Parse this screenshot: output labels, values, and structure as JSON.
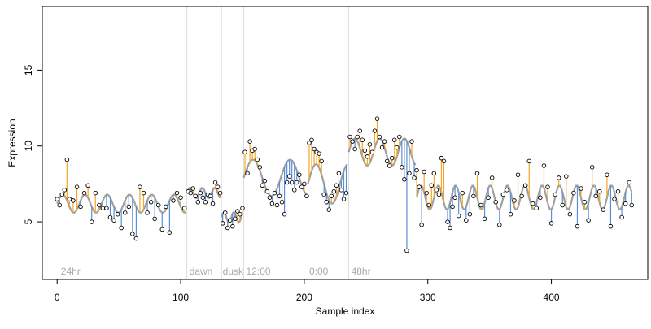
{
  "chart_data": {
    "type": "scatter",
    "title": "",
    "xlabel": "Sample index",
    "ylabel": "Expression",
    "xlim": [
      -12,
      478
    ],
    "ylim": [
      1.2,
      19.2
    ],
    "x_ticks": [
      0,
      100,
      200,
      300,
      400
    ],
    "y_ticks": [
      5,
      10,
      15
    ],
    "grid": false,
    "legend": null,
    "colors": {
      "trend": "#a0a0a0",
      "above": "#f5a623",
      "below": "#5b8fd6",
      "divider": "#dddddd",
      "annotation": "#aaaaaa",
      "point_stroke": "#000000",
      "axis": "#000000"
    },
    "annotations": [
      {
        "label": "24hr",
        "x": 3
      },
      {
        "label": "dawn",
        "x": 107
      },
      {
        "label": "dusk",
        "x": 134
      },
      {
        "label": "12:00",
        "x": 153
      },
      {
        "label": "0:00",
        "x": 204
      },
      {
        "label": "48hr",
        "x": 238
      }
    ],
    "dividers": [
      105,
      133,
      151,
      203,
      236
    ],
    "segments": [
      {
        "x0": 0,
        "x1": 104,
        "base": 6.2,
        "amp": 0.6,
        "period": 18
      },
      {
        "x0": 105,
        "x1": 132,
        "base": 6.9,
        "amp": 0.35,
        "period": 10
      },
      {
        "x0": 133,
        "x1": 150,
        "base": 5.3,
        "amp": 0.35,
        "period": 8
      },
      {
        "x0": 151,
        "x1": 202,
        "base": 7.9,
        "amp": 1.2,
        "period": 30
      },
      {
        "x0": 203,
        "x1": 235,
        "base": 7.5,
        "amp": 1.3,
        "period": 26
      },
      {
        "x0": 236,
        "x1": 290,
        "base": 9.6,
        "amp": 0.9,
        "period": 20
      },
      {
        "x0": 291,
        "x1": 465,
        "base": 6.6,
        "amp": 0.8,
        "period": 14
      }
    ],
    "series": [
      {
        "points": [
          [
            0,
            6.5
          ],
          [
            2,
            6.1
          ],
          [
            4,
            6.8
          ],
          [
            6,
            7.1
          ],
          [
            8,
            9.1
          ],
          [
            10,
            6.5
          ],
          [
            13,
            6.4
          ],
          [
            16,
            7.3
          ],
          [
            19,
            6.0
          ],
          [
            22,
            6.9
          ],
          [
            25,
            7.4
          ],
          [
            28,
            5.0
          ],
          [
            31,
            6.9
          ],
          [
            34,
            6.1
          ],
          [
            37,
            5.9
          ],
          [
            40,
            5.9
          ],
          [
            43,
            5.3
          ],
          [
            46,
            5.1
          ],
          [
            49,
            5.5
          ],
          [
            52,
            4.6
          ],
          [
            55,
            5.6
          ],
          [
            58,
            6.0
          ],
          [
            61,
            4.2
          ],
          [
            64,
            3.9
          ],
          [
            67,
            7.3
          ],
          [
            70,
            6.9
          ],
          [
            73,
            5.6
          ],
          [
            76,
            6.3
          ],
          [
            79,
            5.2
          ],
          [
            82,
            6.1
          ],
          [
            85,
            4.5
          ],
          [
            88,
            6.0
          ],
          [
            91,
            4.3
          ],
          [
            94,
            6.4
          ],
          [
            97,
            6.9
          ],
          [
            100,
            6.6
          ],
          [
            103,
            5.9
          ]
        ]
      },
      {
        "points": [
          [
            106,
            7.0
          ],
          [
            108,
            6.9
          ],
          [
            110,
            7.2
          ],
          [
            112,
            6.7
          ],
          [
            114,
            6.3
          ],
          [
            116,
            6.9
          ],
          [
            118,
            6.6
          ],
          [
            120,
            6.3
          ],
          [
            122,
            6.8
          ],
          [
            124,
            6.7
          ],
          [
            126,
            6.2
          ],
          [
            128,
            7.6
          ],
          [
            130,
            7.3
          ],
          [
            132,
            6.9
          ]
        ]
      },
      {
        "points": [
          [
            134,
            4.9
          ],
          [
            136,
            5.6
          ],
          [
            138,
            4.6
          ],
          [
            140,
            5.1
          ],
          [
            142,
            4.7
          ],
          [
            144,
            5.2
          ],
          [
            146,
            5.7
          ],
          [
            148,
            5.5
          ],
          [
            150,
            5.9
          ]
        ]
      },
      {
        "points": [
          [
            152,
            9.6
          ],
          [
            154,
            8.2
          ],
          [
            156,
            10.3
          ],
          [
            158,
            9.7
          ],
          [
            160,
            9.8
          ],
          [
            162,
            9.1
          ],
          [
            164,
            8.6
          ],
          [
            166,
            7.4
          ],
          [
            168,
            7.7
          ],
          [
            170,
            7.0
          ],
          [
            172,
            6.6
          ],
          [
            174,
            6.2
          ],
          [
            176,
            6.9
          ],
          [
            178,
            6.1
          ],
          [
            180,
            6.7
          ],
          [
            182,
            6.3
          ],
          [
            184,
            5.5
          ],
          [
            186,
            7.6
          ],
          [
            188,
            8.0
          ],
          [
            190,
            7.6
          ],
          [
            192,
            7.1
          ],
          [
            194,
            7.6
          ],
          [
            196,
            8.1
          ],
          [
            198,
            7.3
          ],
          [
            200,
            7.5
          ],
          [
            202,
            6.7
          ]
        ]
      },
      {
        "points": [
          [
            204,
            10.2
          ],
          [
            206,
            10.4
          ],
          [
            208,
            9.8
          ],
          [
            210,
            9.6
          ],
          [
            212,
            9.5
          ],
          [
            214,
            9.0
          ],
          [
            216,
            6.8
          ],
          [
            218,
            6.3
          ],
          [
            220,
            5.8
          ],
          [
            222,
            6.7
          ],
          [
            224,
            7.0
          ],
          [
            226,
            7.4
          ],
          [
            228,
            8.2
          ],
          [
            230,
            7.1
          ],
          [
            232,
            6.5
          ],
          [
            234,
            6.9
          ]
        ]
      },
      {
        "points": [
          [
            237,
            10.6
          ],
          [
            239,
            10.3
          ],
          [
            241,
            9.8
          ],
          [
            243,
            10.6
          ],
          [
            245,
            11.0
          ],
          [
            247,
            10.4
          ],
          [
            249,
            9.7
          ],
          [
            251,
            9.3
          ],
          [
            253,
            10.1
          ],
          [
            255,
            9.6
          ],
          [
            257,
            11.0
          ],
          [
            259,
            11.8
          ],
          [
            261,
            10.6
          ],
          [
            263,
            9.9
          ],
          [
            265,
            10.3
          ],
          [
            267,
            9.0
          ],
          [
            269,
            8.7
          ],
          [
            271,
            9.2
          ],
          [
            273,
            10.4
          ],
          [
            275,
            9.9
          ],
          [
            277,
            10.6
          ],
          [
            279,
            8.6
          ],
          [
            281,
            7.8
          ],
          [
            283,
            3.1
          ],
          [
            285,
            8.2
          ],
          [
            287,
            10.3
          ],
          [
            289,
            7.9
          ]
        ]
      },
      {
        "points": [
          [
            291,
            8.4
          ],
          [
            293,
            7.3
          ],
          [
            295,
            4.8
          ],
          [
            297,
            8.3
          ],
          [
            299,
            6.9
          ],
          [
            301,
            6.1
          ],
          [
            303,
            7.4
          ],
          [
            305,
            8.2
          ],
          [
            307,
            7.1
          ],
          [
            309,
            6.8
          ],
          [
            311,
            9.2
          ],
          [
            313,
            9.0
          ],
          [
            316,
            5.0
          ],
          [
            318,
            4.6
          ],
          [
            320,
            6.0
          ],
          [
            322,
            6.6
          ],
          [
            325,
            5.4
          ],
          [
            328,
            6.9
          ],
          [
            331,
            5.1
          ],
          [
            334,
            5.5
          ],
          [
            337,
            6.7
          ],
          [
            340,
            8.2
          ],
          [
            343,
            6.1
          ],
          [
            346,
            5.2
          ],
          [
            349,
            6.6
          ],
          [
            352,
            7.9
          ],
          [
            355,
            6.3
          ],
          [
            358,
            4.8
          ],
          [
            361,
            6.8
          ],
          [
            364,
            7.1
          ],
          [
            367,
            5.5
          ],
          [
            370,
            6.4
          ],
          [
            373,
            8.1
          ],
          [
            376,
            6.7
          ],
          [
            379,
            7.4
          ],
          [
            382,
            9.0
          ],
          [
            385,
            6.2
          ],
          [
            388,
            5.9
          ],
          [
            391,
            6.6
          ],
          [
            394,
            8.7
          ],
          [
            397,
            7.3
          ],
          [
            400,
            4.9
          ],
          [
            403,
            6.8
          ],
          [
            406,
            7.9
          ],
          [
            409,
            6.1
          ],
          [
            412,
            8.0
          ],
          [
            415,
            5.5
          ],
          [
            418,
            6.9
          ],
          [
            421,
            4.7
          ],
          [
            424,
            7.2
          ],
          [
            427,
            6.3
          ],
          [
            430,
            5.1
          ],
          [
            433,
            8.6
          ],
          [
            436,
            6.7
          ],
          [
            439,
            7.0
          ],
          [
            442,
            5.8
          ],
          [
            445,
            8.1
          ],
          [
            448,
            4.7
          ],
          [
            451,
            6.5
          ],
          [
            454,
            7.0
          ],
          [
            457,
            5.3
          ],
          [
            460,
            6.2
          ],
          [
            463,
            7.6
          ],
          [
            465,
            6.1
          ]
        ]
      }
    ]
  }
}
